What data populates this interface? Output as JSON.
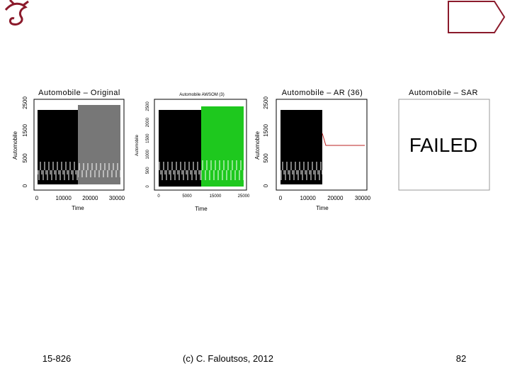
{
  "panels": [
    {
      "title": "Automobile – Original",
      "ylabel": "Automobile",
      "xlabel": "Time",
      "yticks": [
        "0",
        "500",
        "1500",
        "2500"
      ],
      "xticks": [
        "0",
        "10000",
        "20000",
        "30000"
      ]
    },
    {
      "title": "Automobile    AWSOM (3)",
      "ylabel": "Automobile",
      "xlabel": "Time",
      "yticks": [
        "0",
        "500",
        "1000",
        "1500",
        "2000",
        "2500"
      ],
      "xticks": [
        "0",
        "5000",
        "15000",
        "25000"
      ]
    },
    {
      "title": "Automobile – AR (36)",
      "ylabel": "Automobile",
      "xlabel": "Time",
      "yticks": [
        "0",
        "500",
        "1500",
        "2500"
      ],
      "xticks": [
        "0",
        "10000",
        "20000",
        "30000"
      ]
    },
    {
      "title": "Automobile – SAR",
      "message": "FAILED"
    }
  ],
  "footer": {
    "left": "15-826",
    "center": "(c) C. Faloutsos, 2012",
    "right": "82"
  }
}
